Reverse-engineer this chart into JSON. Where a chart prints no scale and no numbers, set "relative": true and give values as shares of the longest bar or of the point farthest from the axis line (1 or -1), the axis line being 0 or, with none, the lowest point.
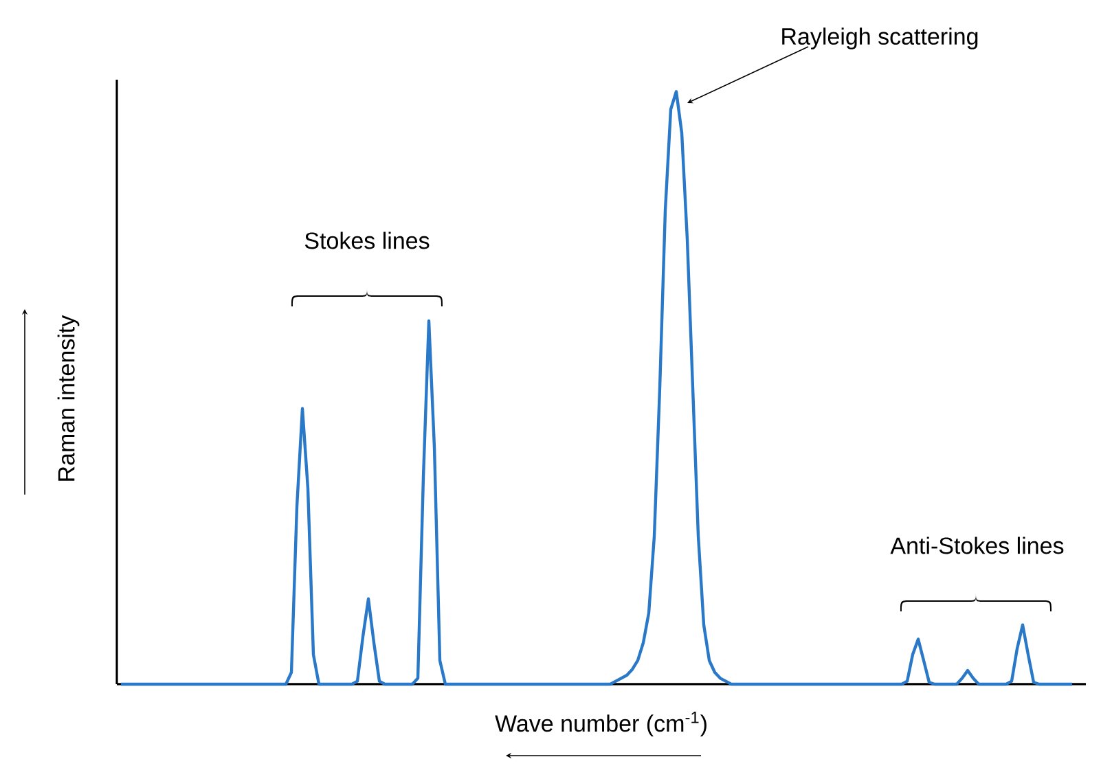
{
  "chart_data": {
    "type": "line",
    "relative": true,
    "xlabel": "Wave number (cm$^{-1}$)",
    "ylabel": "Raman intensity",
    "annotations": [
      "Rayleigh scattering",
      "Stokes lines",
      "Anti-Stokes lines"
    ],
    "color": "#2a78c8",
    "categories": [
      null,
      null,
      null,
      null,
      null,
      null,
      null,
      null,
      null,
      null,
      null,
      null,
      null,
      null,
      null,
      null,
      null,
      null,
      null,
      null,
      null,
      null,
      null,
      null,
      null,
      null,
      null,
      null,
      null,
      null,
      null,
      null,
      null,
      null,
      null,
      null,
      null,
      null,
      null,
      null,
      null,
      null,
      null,
      null,
      null,
      null,
      null,
      null,
      null,
      null,
      null,
      null,
      null,
      null,
      null,
      null,
      null,
      null,
      null,
      null,
      null,
      null,
      null,
      null,
      null,
      null,
      null,
      null,
      null,
      null,
      null,
      null,
      null,
      null,
      null,
      null,
      null,
      null,
      null,
      null,
      null,
      null,
      null,
      null,
      null,
      null,
      null,
      null,
      null,
      null,
      null,
      null,
      null,
      null,
      null,
      null,
      null,
      null,
      null,
      null,
      null,
      null,
      null,
      null,
      null,
      null,
      null,
      null,
      null,
      null,
      null,
      null,
      null,
      null,
      null,
      null,
      null,
      null,
      null,
      null,
      null,
      null,
      null,
      null,
      null,
      null,
      null,
      null,
      null,
      null,
      null,
      null,
      null,
      null,
      null,
      null,
      null,
      null,
      null,
      null,
      null,
      null,
      null,
      null,
      null,
      null,
      null,
      null,
      null,
      null,
      null,
      null,
      null,
      null,
      null,
      null,
      null,
      null,
      null,
      null,
      null,
      null,
      null,
      null,
      null,
      null,
      null,
      null,
      null,
      null,
      null,
      null,
      null,
      null
    ],
    "values": [
      0,
      0,
      0,
      0,
      0,
      0,
      0,
      0,
      0,
      0,
      0,
      0,
      0,
      0,
      0,
      0,
      0,
      0,
      0,
      0,
      0,
      0,
      0,
      0,
      0,
      0,
      0,
      0,
      0,
      0,
      0,
      0.02,
      0.3,
      0.465,
      0.33,
      0.05,
      0,
      0,
      0,
      0,
      0,
      0,
      0,
      0.005,
      0.08,
      0.144,
      0.07,
      0.005,
      0,
      0,
      0,
      0,
      0,
      0,
      0.01,
      0.35,
      0.613,
      0.4,
      0.04,
      0,
      0,
      0,
      0,
      0,
      0,
      0,
      0,
      0,
      0,
      0,
      0,
      0,
      0,
      0,
      0,
      0,
      0,
      0,
      0,
      0,
      0,
      0,
      0,
      0,
      0,
      0,
      0,
      0,
      0,
      0,
      0.005,
      0.01,
      0.015,
      0.025,
      0.04,
      0.07,
      0.12,
      0.25,
      0.5,
      0.8,
      0.97,
      1,
      0.93,
      0.75,
      0.5,
      0.25,
      0.1,
      0.04,
      0.02,
      0.01,
      0.005,
      0,
      0,
      0,
      0,
      0,
      0,
      0,
      0,
      0,
      0,
      0,
      0,
      0,
      0,
      0,
      0,
      0,
      0,
      0,
      0,
      0,
      0,
      0,
      0,
      0,
      0,
      0,
      0,
      0,
      0,
      0,
      0,
      0.005,
      0.05,
      0.076,
      0.04,
      0.003,
      0,
      0,
      0,
      0,
      0,
      0.01,
      0.023,
      0.01,
      0,
      0,
      0,
      0,
      0,
      0,
      0.005,
      0.06,
      0.1,
      0.05,
      0.003,
      0,
      0,
      0,
      0,
      0,
      0,
      0
    ]
  }
}
